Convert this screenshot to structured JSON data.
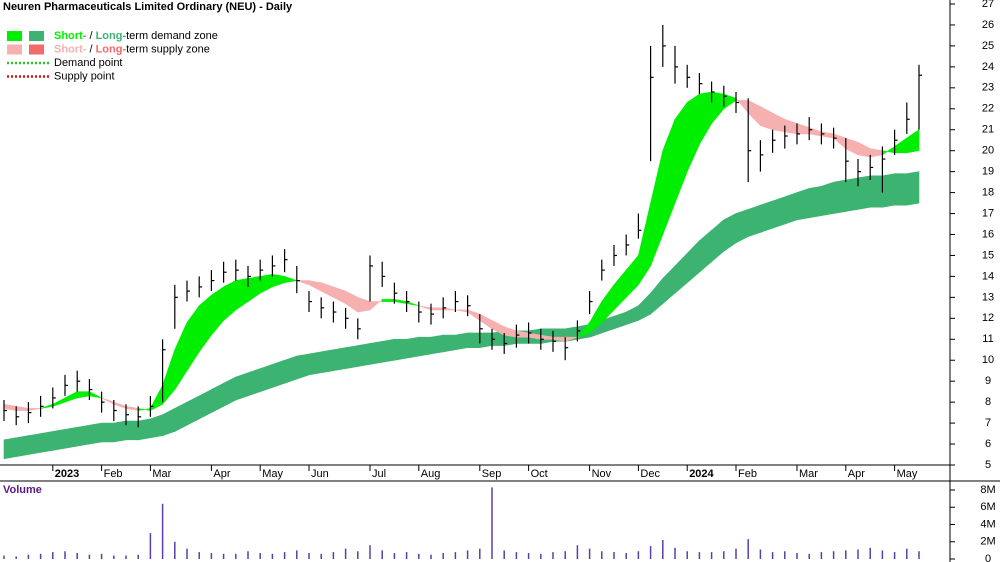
{
  "chart_data": [
    {
      "type": "ohlc",
      "title": "Neuren Pharmaceuticals Limited Ordinary (NEU) - Daily",
      "categories": [
        null,
        null,
        null,
        null,
        "2023",
        null,
        null,
        null,
        "Feb",
        null,
        null,
        null,
        "Mar",
        null,
        null,
        null,
        null,
        "Apr",
        null,
        null,
        null,
        "May",
        null,
        null,
        null,
        "Jun",
        null,
        null,
        null,
        null,
        "Jul",
        null,
        null,
        null,
        "Aug",
        null,
        null,
        null,
        null,
        "Sep",
        null,
        null,
        null,
        "Oct",
        null,
        null,
        null,
        null,
        "Nov",
        null,
        null,
        null,
        "Dec",
        null,
        null,
        null,
        "2024",
        null,
        null,
        null,
        "Feb",
        null,
        null,
        null,
        null,
        "Mar",
        null,
        null,
        null,
        "Apr",
        null,
        null,
        null,
        "May",
        null,
        null
      ],
      "high": [
        8.1,
        7.8,
        8.0,
        8.3,
        8.7,
        9.3,
        9.5,
        9.1,
        8.5,
        8.1,
        7.9,
        7.8,
        8.3,
        11.0,
        13.6,
        13.8,
        14.0,
        14.3,
        14.7,
        14.8,
        14.5,
        14.8,
        15.0,
        15.3,
        14.5,
        13.3,
        13.0,
        12.8,
        12.5,
        12.0,
        15.0,
        14.7,
        13.7,
        13.3,
        12.8,
        12.7,
        13.0,
        13.3,
        13.1,
        12.2,
        11.5,
        11.3,
        11.7,
        11.8,
        11.5,
        11.4,
        11.1,
        11.9,
        13.3,
        14.8,
        15.5,
        16.0,
        17.0,
        25.0,
        26.0,
        25.0,
        24.1,
        23.7,
        23.3,
        23.1,
        22.8,
        22.5,
        20.5,
        21.0,
        21.2,
        21.3,
        21.6,
        21.3,
        21.1,
        20.6,
        19.6,
        19.8,
        20.2,
        21.0,
        22.3,
        24.1
      ],
      "low": [
        7.1,
        6.9,
        7.0,
        7.3,
        7.7,
        8.3,
        8.5,
        8.1,
        7.5,
        7.1,
        6.9,
        6.8,
        7.3,
        8.0,
        11.5,
        12.8,
        13.0,
        13.3,
        13.7,
        13.8,
        13.5,
        13.8,
        14.0,
        14.2,
        13.2,
        12.3,
        12.0,
        11.8,
        11.5,
        11.0,
        12.8,
        13.5,
        12.7,
        12.3,
        11.8,
        11.7,
        12.0,
        12.3,
        12.1,
        10.8,
        10.5,
        10.3,
        10.6,
        10.8,
        10.5,
        10.4,
        10.0,
        10.9,
        12.2,
        13.8,
        14.5,
        15.0,
        15.8,
        19.5,
        24.0,
        23.2,
        23.0,
        22.7,
        22.3,
        22.1,
        21.8,
        18.5,
        19.0,
        19.9,
        20.1,
        20.3,
        20.5,
        20.3,
        20.1,
        18.5,
        18.3,
        18.6,
        18.0,
        19.8,
        20.8,
        21.0
      ],
      "close": [
        7.6,
        7.3,
        7.5,
        7.8,
        8.2,
        8.8,
        9.0,
        8.6,
        8.0,
        7.6,
        7.4,
        7.3,
        7.8,
        10.5,
        13.0,
        13.3,
        13.5,
        13.8,
        14.2,
        14.3,
        14.0,
        14.3,
        14.5,
        14.8,
        13.8,
        12.8,
        12.5,
        12.3,
        12.0,
        11.5,
        14.5,
        14.0,
        13.2,
        12.8,
        12.3,
        12.2,
        12.5,
        12.8,
        12.6,
        11.5,
        11.0,
        10.8,
        11.2,
        11.3,
        11.0,
        10.9,
        10.6,
        11.4,
        12.8,
        14.3,
        15.0,
        15.5,
        16.2,
        23.5,
        25.0,
        24.0,
        23.5,
        23.2,
        22.8,
        22.6,
        22.3,
        20.0,
        19.8,
        20.5,
        20.7,
        20.8,
        21.0,
        20.8,
        20.6,
        19.5,
        19.0,
        19.2,
        19.6,
        20.5,
        21.5,
        23.6
      ],
      "short_zone": {
        "fast": [
          7.7,
          7.6,
          7.6,
          7.7,
          7.9,
          8.2,
          8.5,
          8.5,
          8.2,
          7.9,
          7.7,
          7.6,
          7.7,
          8.8,
          10.5,
          11.8,
          12.6,
          13.1,
          13.5,
          13.8,
          13.9,
          14.0,
          14.1,
          14.0,
          13.8,
          13.6,
          13.3,
          13.0,
          12.7,
          12.3,
          12.4,
          12.9,
          12.9,
          12.8,
          12.6,
          12.4,
          12.4,
          12.4,
          12.3,
          11.9,
          11.5,
          11.2,
          11.1,
          11.1,
          11.0,
          11.0,
          10.9,
          11.1,
          11.8,
          12.8,
          13.6,
          14.3,
          15.0,
          17.5,
          20.0,
          21.5,
          22.3,
          22.7,
          22.8,
          22.7,
          22.5,
          21.8,
          21.2,
          21.0,
          20.9,
          20.8,
          20.8,
          20.7,
          20.6,
          20.1,
          19.8,
          19.7,
          19.8,
          20.2,
          20.6,
          21.0
        ],
        "slow": [
          7.9,
          7.8,
          7.7,
          7.7,
          7.8,
          8.0,
          8.2,
          8.3,
          8.2,
          8.0,
          7.8,
          7.7,
          7.6,
          7.9,
          8.6,
          9.5,
          10.4,
          11.2,
          11.9,
          12.4,
          12.8,
          13.2,
          13.5,
          13.7,
          13.8,
          13.8,
          13.7,
          13.5,
          13.3,
          13.0,
          12.8,
          12.8,
          12.8,
          12.7,
          12.6,
          12.5,
          12.5,
          12.4,
          12.4,
          12.2,
          11.9,
          11.6,
          11.4,
          11.3,
          11.2,
          11.1,
          11.1,
          11.1,
          11.3,
          11.8,
          12.4,
          13.0,
          13.6,
          14.5,
          16.0,
          17.5,
          19.0,
          20.3,
          21.3,
          22.0,
          22.4,
          22.4,
          22.1,
          21.8,
          21.5,
          21.3,
          21.1,
          20.9,
          20.8,
          20.6,
          20.4,
          20.1,
          20.0,
          19.9,
          19.9,
          20.0
        ],
        "demand_color": "#00ee00",
        "supply_color": "#f6b0b0"
      },
      "long_zone": {
        "fast": [
          6.2,
          6.3,
          6.4,
          6.5,
          6.6,
          6.7,
          6.8,
          6.9,
          7.0,
          7.0,
          7.1,
          7.1,
          7.2,
          7.4,
          7.7,
          8.0,
          8.3,
          8.6,
          8.9,
          9.2,
          9.4,
          9.6,
          9.8,
          10.0,
          10.2,
          10.3,
          10.4,
          10.5,
          10.6,
          10.7,
          10.8,
          10.9,
          11.0,
          11.0,
          11.1,
          11.1,
          11.2,
          11.2,
          11.3,
          11.3,
          11.3,
          11.4,
          11.4,
          11.4,
          11.5,
          11.5,
          11.5,
          11.6,
          11.7,
          11.9,
          12.1,
          12.3,
          12.6,
          13.2,
          13.9,
          14.5,
          15.1,
          15.7,
          16.2,
          16.7,
          17.0,
          17.2,
          17.4,
          17.6,
          17.8,
          18.0,
          18.2,
          18.3,
          18.5,
          18.6,
          18.7,
          18.8,
          18.8,
          18.9,
          18.9,
          19.0
        ],
        "slow": [
          5.3,
          5.4,
          5.5,
          5.6,
          5.7,
          5.8,
          5.9,
          6.0,
          6.1,
          6.1,
          6.2,
          6.2,
          6.3,
          6.4,
          6.6,
          6.9,
          7.2,
          7.5,
          7.8,
          8.1,
          8.3,
          8.5,
          8.7,
          8.9,
          9.1,
          9.3,
          9.4,
          9.5,
          9.6,
          9.7,
          9.8,
          9.9,
          10.0,
          10.1,
          10.2,
          10.3,
          10.4,
          10.5,
          10.6,
          10.6,
          10.7,
          10.7,
          10.8,
          10.8,
          10.8,
          10.9,
          10.9,
          11.0,
          11.1,
          11.3,
          11.5,
          11.7,
          11.9,
          12.2,
          12.7,
          13.2,
          13.7,
          14.2,
          14.7,
          15.2,
          15.6,
          15.9,
          16.1,
          16.3,
          16.5,
          16.7,
          16.8,
          16.9,
          17.0,
          17.1,
          17.2,
          17.3,
          17.3,
          17.4,
          17.4,
          17.5
        ],
        "demand_color": "#3cb371",
        "supply_color": "#f26a6a"
      },
      "bar_color": "#000000",
      "ylim": [
        5,
        27
      ],
      "yticks": [
        5,
        6,
        7,
        8,
        9,
        10,
        11,
        12,
        13,
        14,
        15,
        16,
        17,
        18,
        19,
        20,
        21,
        22,
        23,
        24,
        25,
        26,
        27
      ],
      "legend": [
        {
          "swatches": [
            "#00ee00",
            "#3cb371"
          ],
          "parts": [
            {
              "text": "Short-",
              "color": "#00ee00"
            },
            {
              "text": " / "
            },
            {
              "text": "Long-",
              "color": "#3cb371"
            },
            {
              "text": "term demand zone"
            }
          ]
        },
        {
          "swatches": [
            "#f6b0b0",
            "#f26a6a"
          ],
          "parts": [
            {
              "text": "Short-",
              "color": "#f6b0b0"
            },
            {
              "text": " / "
            },
            {
              "text": "Long-",
              "color": "#f26a6a"
            },
            {
              "text": "term supply zone"
            }
          ]
        },
        {
          "line": "#22cc22",
          "parts": [
            {
              "text": "Demand point"
            }
          ]
        },
        {
          "line": "#dd1111",
          "parts": [
            {
              "text": "Supply point"
            }
          ]
        }
      ]
    },
    {
      "type": "bar",
      "title": "Volume",
      "values": [
        400000,
        300000,
        500000,
        600000,
        800000,
        900000,
        700000,
        500000,
        600000,
        400000,
        400000,
        500000,
        3000000,
        6400000,
        2000000,
        1200000,
        800000,
        700000,
        600000,
        600000,
        900000,
        700000,
        600000,
        800000,
        1000000,
        700000,
        600000,
        800000,
        1200000,
        900000,
        1600000,
        1000000,
        700000,
        800000,
        600000,
        500000,
        700000,
        800000,
        1000000,
        1200000,
        8300000,
        1000000,
        800000,
        700000,
        600000,
        800000,
        900000,
        1600000,
        1200000,
        900000,
        800000,
        700000,
        900000,
        1500000,
        2200000,
        1300000,
        900000,
        800000,
        800000,
        900000,
        1200000,
        2300000,
        1100000,
        800000,
        900000,
        700000,
        600000,
        800000,
        900000,
        1000000,
        1100000,
        1300000,
        1000000,
        800000,
        1200000,
        900000
      ],
      "color": "#5a3fa8",
      "ylim": [
        0,
        8000000
      ],
      "yticks": [
        0,
        {
          "value": 2000000,
          "label": "2M"
        },
        {
          "value": 4000000,
          "label": "4M"
        },
        {
          "value": 6000000,
          "label": "6M"
        },
        {
          "value": 8000000,
          "label": "8M"
        }
      ]
    }
  ]
}
